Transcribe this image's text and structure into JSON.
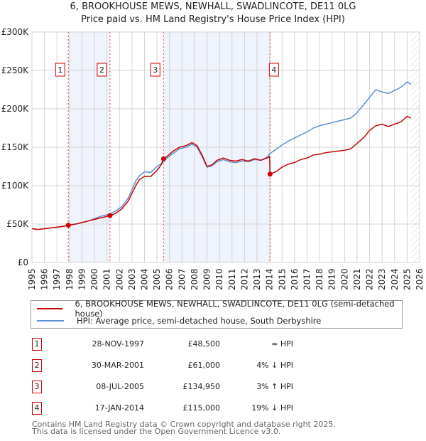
{
  "title": "6, BROOKHOUSE MEWS, NEWHALL, SWADLINCOTE, DE11 0LG",
  "subtitle": "Price paid vs. HM Land Registry's House Price Index (HPI)",
  "chart_data": {
    "type": "line",
    "xlim": [
      1995,
      2026
    ],
    "ylim": [
      0,
      300000
    ],
    "yticks": [
      {
        "v": 0,
        "label": "£0"
      },
      {
        "v": 50000,
        "label": "£50K"
      },
      {
        "v": 100000,
        "label": "£100K"
      },
      {
        "v": 150000,
        "label": "£150K"
      },
      {
        "v": 200000,
        "label": "£200K"
      },
      {
        "v": 250000,
        "label": "£250K"
      },
      {
        "v": 300000,
        "label": "£300K"
      }
    ],
    "xticks": [
      "1995",
      "1996",
      "1997",
      "1998",
      "1999",
      "2000",
      "2001",
      "2002",
      "2003",
      "2004",
      "2005",
      "2006",
      "2007",
      "2008",
      "2009",
      "2010",
      "2011",
      "2012",
      "2013",
      "2014",
      "2015",
      "2016",
      "2017",
      "2018",
      "2019",
      "2020",
      "2021",
      "2022",
      "2023",
      "2024",
      "2025",
      "2026"
    ],
    "series": [
      {
        "name": "6, BROOKHOUSE MEWS, NEWHALL, SWADLINCOTE, DE11 0LG (semi-detached house)",
        "color": "#cc0000",
        "x": [
          1995,
          1995.5,
          1996,
          1996.5,
          1997,
          1997.5,
          1997.91,
          1998.5,
          1999,
          1999.5,
          2000,
          2000.5,
          2001,
          2001.24,
          2001.7,
          2002.2,
          2002.7,
          2003,
          2003.3,
          2003.6,
          2004,
          2004.5,
          2005,
          2005.3,
          2005.52,
          2005.8,
          2006.3,
          2006.8,
          2007.3,
          2007.8,
          2008.2,
          2008.6,
          2009,
          2009.4,
          2009.8,
          2010.3,
          2010.8,
          2011.3,
          2011.8,
          2012.3,
          2012.8,
          2013.3,
          2013.8,
          2014.0,
          2014.04,
          2014.5,
          2015,
          2015.5,
          2016,
          2016.5,
          2017,
          2017.5,
          2018,
          2018.5,
          2019,
          2019.5,
          2020,
          2020.5,
          2021,
          2021.5,
          2022,
          2022.5,
          2023,
          2023.5,
          2024,
          2024.5,
          2025,
          2025.3
        ],
        "y": [
          44000,
          43000,
          44000,
          45000,
          46000,
          47000,
          48500,
          50000,
          52000,
          54000,
          56000,
          58000,
          60000,
          61000,
          64000,
          70000,
          80000,
          90000,
          100000,
          108000,
          112000,
          112000,
          120000,
          126000,
          134950,
          138000,
          145000,
          150000,
          152000,
          156000,
          152000,
          140000,
          125000,
          127000,
          133000,
          136000,
          133000,
          132000,
          134000,
          132000,
          135000,
          133000,
          136000,
          138000,
          115000,
          118000,
          124000,
          128000,
          130000,
          134000,
          136000,
          140000,
          141000,
          143000,
          144000,
          145000,
          146000,
          148000,
          155000,
          162000,
          172000,
          178000,
          180000,
          177000,
          180000,
          183000,
          190000,
          188000
        ]
      },
      {
        "name": "HPI: Average price, semi-detached house, South Derbyshire",
        "color": "#5b8fd6",
        "x": [
          1995,
          1995.5,
          1996,
          1996.5,
          1997,
          1997.5,
          1997.91,
          1998.5,
          1999,
          1999.5,
          2000,
          2000.5,
          2001,
          2001.24,
          2001.7,
          2002.2,
          2002.7,
          2003,
          2003.3,
          2003.6,
          2004,
          2004.5,
          2005,
          2005.3,
          2005.52,
          2005.8,
          2006.3,
          2006.8,
          2007.3,
          2007.8,
          2008.2,
          2008.6,
          2009,
          2009.4,
          2009.8,
          2010.3,
          2010.8,
          2011.3,
          2011.8,
          2012.3,
          2012.8,
          2013.3,
          2013.8,
          2014.04,
          2014.5,
          2015,
          2015.5,
          2016,
          2016.5,
          2017,
          2017.5,
          2018,
          2018.5,
          2019,
          2019.5,
          2020,
          2020.5,
          2021,
          2021.5,
          2022,
          2022.5,
          2023,
          2023.5,
          2024,
          2024.5,
          2025,
          2025.3
        ],
        "y": [
          44000,
          43000,
          44000,
          45000,
          46000,
          47000,
          48500,
          50000,
          52000,
          54000,
          57000,
          60000,
          62000,
          63500,
          67000,
          73000,
          84000,
          95000,
          106000,
          113000,
          118000,
          117000,
          125000,
          128000,
          131000,
          136000,
          142000,
          148000,
          150000,
          154000,
          150000,
          138000,
          124000,
          126000,
          131000,
          134000,
          131000,
          130000,
          132000,
          131000,
          134000,
          133000,
          137000,
          142000,
          147000,
          153000,
          158000,
          162000,
          166000,
          170000,
          175000,
          178000,
          180000,
          182000,
          184000,
          186000,
          188000,
          195000,
          205000,
          215000,
          225000,
          222000,
          220000,
          224000,
          228000,
          235000,
          232000
        ]
      }
    ],
    "sales": [
      {
        "id": "1",
        "date": "28-NOV-1997",
        "x": 1997.91,
        "price": "£48,500",
        "value": 48500,
        "hpi": "≈ HPI"
      },
      {
        "id": "2",
        "date": "30-MAR-2001",
        "x": 2001.24,
        "price": "£61,000",
        "value": 61000,
        "hpi": "4% ↓ HPI"
      },
      {
        "id": "3",
        "date": "08-JUL-2005",
        "x": 2005.52,
        "price": "£134,950",
        "value": 134950,
        "hpi": "3% ↑ HPI"
      },
      {
        "id": "4",
        "date": "17-JAN-2014",
        "x": 2014.04,
        "price": "£115,000",
        "value": 115000,
        "hpi": "19% ↓ HPI"
      }
    ],
    "shaded": [
      [
        1997.91,
        2001.24
      ],
      [
        2005.52,
        2014.04
      ]
    ],
    "forecast_from": 2025.3
  },
  "footer": [
    "Contains HM Land Registry data © Crown copyright and database right 2025.",
    "This data is licensed under the Open Government Licence v3.0."
  ]
}
